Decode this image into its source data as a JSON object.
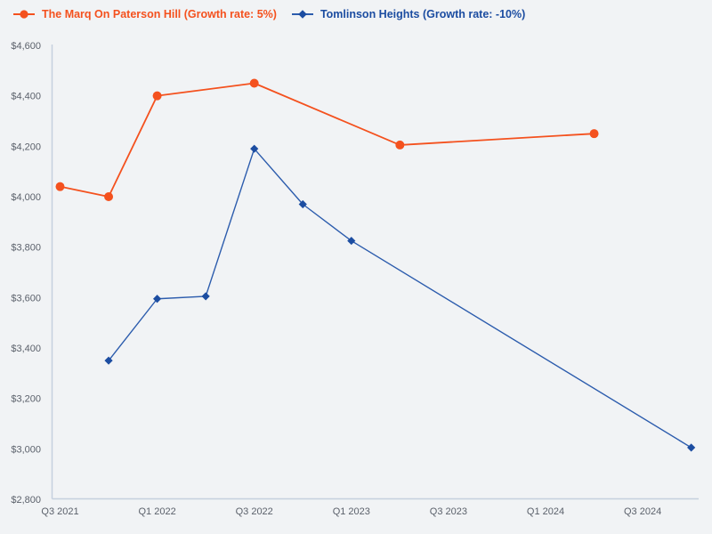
{
  "chart_data": {
    "type": "line",
    "title": "",
    "legend_position": "top-left",
    "grid": false,
    "background_color": "#f1f3f5",
    "axis_color": "#c5d0de",
    "label_color": "#5b616b",
    "x_axis": {
      "unit": "quarter",
      "quarters": [
        "Q3 2021",
        "Q4 2021",
        "Q1 2022",
        "Q2 2022",
        "Q3 2022",
        "Q4 2022",
        "Q1 2023",
        "Q2 2023",
        "Q3 2023",
        "Q4 2023",
        "Q1 2024",
        "Q2 2024",
        "Q3 2024",
        "Q4 2024"
      ],
      "tick_labels": [
        "Q3 2021",
        "Q1 2022",
        "Q3 2022",
        "Q1 2023",
        "Q3 2023",
        "Q1 2024",
        "Q3 2024"
      ]
    },
    "y_axis": {
      "min": 2800,
      "max": 4600,
      "step": 200,
      "ticks": [
        {
          "value": 2800,
          "label": "$2,800"
        },
        {
          "value": 3000,
          "label": "$3,000"
        },
        {
          "value": 3200,
          "label": "$3,200"
        },
        {
          "value": 3400,
          "label": "$3,400"
        },
        {
          "value": 3600,
          "label": "$3,600"
        },
        {
          "value": 3800,
          "label": "$3,800"
        },
        {
          "value": 4000,
          "label": "$4,000"
        },
        {
          "value": 4200,
          "label": "$4,200"
        },
        {
          "value": 4400,
          "label": "$4,400"
        },
        {
          "value": 4600,
          "label": "$4,600"
        }
      ]
    },
    "series": [
      {
        "name": "The Marq On Paterson Hill (Growth rate: 5%)",
        "color": "#f4511e",
        "line_color": "#f4511e",
        "line_width": 1.8,
        "marker": "circle",
        "points": [
          {
            "x": "Q3 2021",
            "y": 4040
          },
          {
            "x": "Q4 2021",
            "y": 4000
          },
          {
            "x": "Q1 2022",
            "y": 4400
          },
          {
            "x": "Q3 2022",
            "y": 4450
          },
          {
            "x": "Q2 2023",
            "y": 4205
          },
          {
            "x": "Q2 2024",
            "y": 4250
          }
        ]
      },
      {
        "name": "Tomlinson Heights (Growth rate: -10%)",
        "color": "#1c4da1",
        "line_color": "#2c5cad",
        "line_width": 1.4,
        "marker": "diamond",
        "points": [
          {
            "x": "Q4 2021",
            "y": 3350
          },
          {
            "x": "Q1 2022",
            "y": 3595
          },
          {
            "x": "Q2 2022",
            "y": 3605
          },
          {
            "x": "Q3 2022",
            "y": 4190
          },
          {
            "x": "Q4 2022",
            "y": 3970
          },
          {
            "x": "Q1 2023",
            "y": 3825
          },
          {
            "x": "Q4 2024",
            "y": 3005
          }
        ]
      }
    ]
  }
}
